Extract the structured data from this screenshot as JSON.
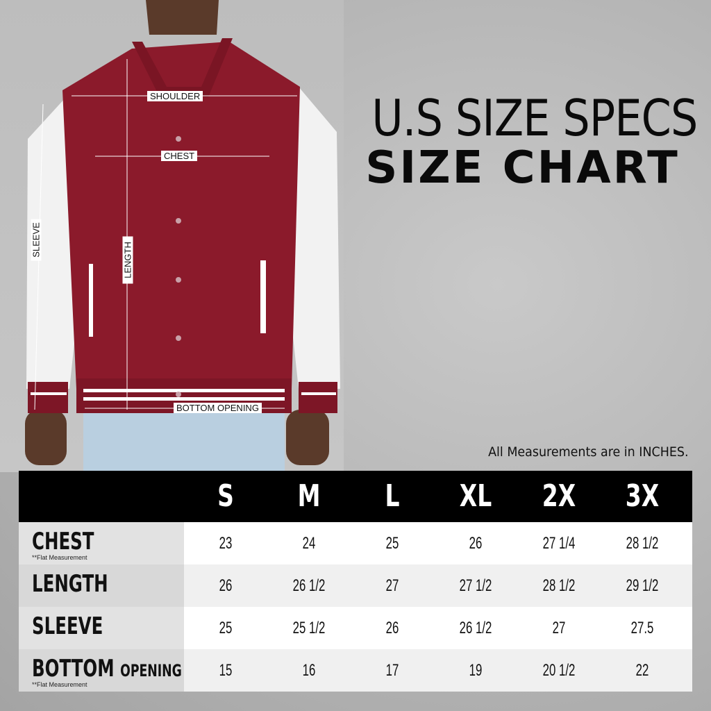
{
  "title": {
    "line1": "U.S SIZE SPECS",
    "line2": "SIZE CHART"
  },
  "photo_labels": {
    "shoulder": "SHOULDER",
    "chest": "CHEST",
    "length": "LENGTH",
    "sleeve": "SLEEVE",
    "bottom_opening": "BOTTOM OPENING"
  },
  "note": "All Measurements are in INCHES.",
  "colors": {
    "jacket_body": "#8b1a2b",
    "sleeves": "#f4f4f4",
    "header": "#000000"
  },
  "table": {
    "sizes": [
      "S",
      "M",
      "L",
      "XL",
      "2X",
      "3X"
    ],
    "rows": [
      {
        "label": "CHEST",
        "label_small": "",
        "sub": "**Flat Measurement",
        "values": [
          "23",
          "24",
          "25",
          "26",
          "27 1/4",
          "28 1/2"
        ]
      },
      {
        "label": "LENGTH",
        "label_small": "",
        "sub": "",
        "values": [
          "26",
          "26 1/2",
          "27",
          "27 1/2",
          "28 1/2",
          "29 1/2"
        ]
      },
      {
        "label": "SLEEVE",
        "label_small": "",
        "sub": "",
        "values": [
          "25",
          "25 1/2",
          "26",
          "26 1/2",
          "27",
          "27.5"
        ]
      },
      {
        "label": "BOTTOM",
        "label_small": "OPENING",
        "sub": "**Flat Measurement",
        "values": [
          "15",
          "16",
          "17",
          "19",
          "20 1/2",
          "22"
        ]
      }
    ]
  }
}
